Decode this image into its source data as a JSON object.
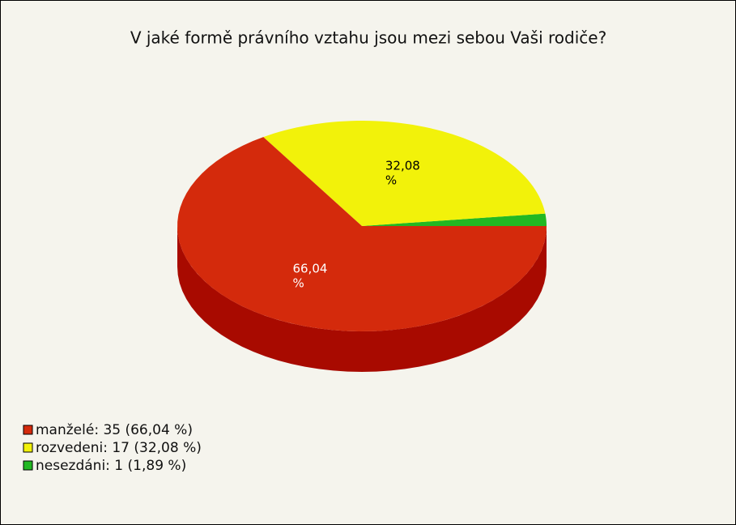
{
  "chart_data": {
    "type": "pie",
    "title": "V jaké formě právního vztahu jsou mezi sebou Vaši rodiče?",
    "categories": [
      "manželé: 35 (66,04 %)",
      "rozvedeni: 17 (32,08 %)",
      "nesezdáni: 1 (1,89 %)"
    ],
    "values": [
      66.04,
      32.08,
      1.89
    ],
    "value_labels": [
      "66,04 %",
      "32,08 %",
      null
    ],
    "colors": [
      "#d42a0c",
      "#f2f20a",
      "#22b822"
    ],
    "side_colors": [
      "#a80a00",
      "#b8b800",
      "#118811"
    ],
    "label_colors": [
      "#ffffff",
      "#000000",
      "#000000"
    ]
  }
}
